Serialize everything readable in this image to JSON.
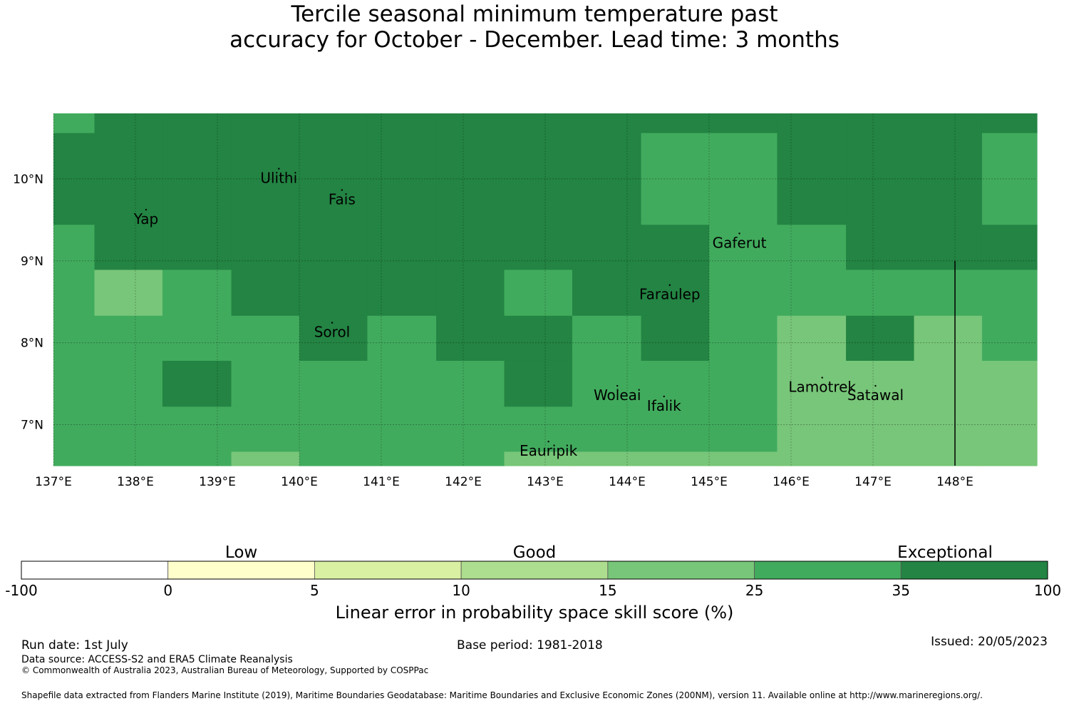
{
  "title": {
    "line1": "Tercile seasonal minimum temperature past",
    "line2": "accuracy for October - December. Lead time: 3 months"
  },
  "map": {
    "lon_range": [
      137.0,
      149.0
    ],
    "lat_range": [
      6.5,
      10.8
    ],
    "x_ticks": [
      {
        "value": 137,
        "label": "137°E"
      },
      {
        "value": 138,
        "label": "138°E"
      },
      {
        "value": 139,
        "label": "139°E"
      },
      {
        "value": 140,
        "label": "140°E"
      },
      {
        "value": 141,
        "label": "141°E"
      },
      {
        "value": 142,
        "label": "142°E"
      },
      {
        "value": 143,
        "label": "143°E"
      },
      {
        "value": 144,
        "label": "144°E"
      },
      {
        "value": 145,
        "label": "145°E"
      },
      {
        "value": 146,
        "label": "146°E"
      },
      {
        "value": 147,
        "label": "147°E"
      },
      {
        "value": 148,
        "label": "148°E"
      }
    ],
    "y_ticks": [
      {
        "value": 7,
        "label": "7°N"
      },
      {
        "value": 8,
        "label": "8°N"
      },
      {
        "value": 9,
        "label": "9°N"
      },
      {
        "value": 10,
        "label": "10°N"
      }
    ],
    "grid": true,
    "legend_classes": {
      "3": "#78c679",
      "4": "#41ab5d",
      "5": "#238443"
    },
    "lon_edges": [
      137.0,
      137.5,
      138.33,
      139.17,
      140.0,
      140.83,
      141.67,
      142.5,
      143.33,
      144.17,
      145.0,
      145.83,
      146.67,
      147.5,
      148.33,
      149.0
    ],
    "lat_edges": [
      10.8,
      10.56,
      9.44,
      8.89,
      8.33,
      7.78,
      7.22,
      6.67,
      6.5
    ],
    "skill_class_grid": [
      [
        4,
        5,
        5,
        5,
        5,
        5,
        5,
        5,
        5,
        5,
        5,
        5,
        5,
        5,
        5
      ],
      [
        5,
        5,
        5,
        5,
        5,
        5,
        5,
        5,
        5,
        4,
        4,
        5,
        5,
        5,
        4
      ],
      [
        4,
        5,
        5,
        5,
        5,
        5,
        5,
        5,
        5,
        5,
        4,
        4,
        5,
        5,
        5
      ],
      [
        4,
        3,
        4,
        5,
        5,
        5,
        5,
        4,
        5,
        5,
        4,
        4,
        4,
        4,
        4
      ],
      [
        4,
        4,
        4,
        4,
        5,
        4,
        5,
        5,
        4,
        5,
        4,
        3,
        5,
        3,
        4
      ],
      [
        4,
        4,
        5,
        4,
        4,
        4,
        4,
        5,
        4,
        4,
        4,
        3,
        3,
        3,
        3
      ],
      [
        4,
        4,
        4,
        4,
        4,
        4,
        4,
        4,
        4,
        4,
        4,
        3,
        3,
        3,
        3
      ],
      [
        4,
        4,
        4,
        3,
        4,
        4,
        4,
        3,
        3,
        3,
        3,
        3,
        3,
        3,
        3
      ]
    ],
    "places": [
      {
        "name": "Ulithi",
        "lon": 139.75,
        "lat": 10.02
      },
      {
        "name": "Fais",
        "lon": 140.52,
        "lat": 9.76
      },
      {
        "name": "Yap",
        "lon": 138.13,
        "lat": 9.52
      },
      {
        "name": "Gaferut",
        "lon": 145.37,
        "lat": 9.23
      },
      {
        "name": "Faraulep",
        "lon": 144.52,
        "lat": 8.6
      },
      {
        "name": "Sorol",
        "lon": 140.4,
        "lat": 8.14
      },
      {
        "name": "Woleai",
        "lon": 143.88,
        "lat": 7.37
      },
      {
        "name": "Ifalik",
        "lon": 144.45,
        "lat": 7.24
      },
      {
        "name": "Lamotrek",
        "lon": 146.38,
        "lat": 7.47
      },
      {
        "name": "Satawal",
        "lon": 147.03,
        "lat": 7.37
      },
      {
        "name": "Eauripik",
        "lon": 143.04,
        "lat": 6.69
      }
    ],
    "boundary_line": {
      "lon": 148.0,
      "lat_from": 6.5,
      "lat_to": 9.0
    }
  },
  "colorbar": {
    "category_labels": [
      {
        "label": "Low",
        "at_bin": 1.5
      },
      {
        "label": "Good",
        "at_bin": 3.5
      },
      {
        "label": "Exceptional",
        "at_bin": 6.3
      }
    ],
    "bins": [
      {
        "from": "-100",
        "to": "0",
        "color": "#ffffff"
      },
      {
        "from": "0",
        "to": "5",
        "color": "#ffffcc"
      },
      {
        "from": "5",
        "to": "10",
        "color": "#d9f0a3"
      },
      {
        "from": "10",
        "to": "15",
        "color": "#addd8e"
      },
      {
        "from": "15",
        "to": "25",
        "color": "#78c679"
      },
      {
        "from": "25",
        "to": "35",
        "color": "#41ab5d"
      },
      {
        "from": "35",
        "to": "100",
        "color": "#238443"
      }
    ],
    "tick_labels": [
      "-100",
      "0",
      "5",
      "10",
      "15",
      "25",
      "35",
      "100"
    ],
    "axis_label": "Linear error in probability space skill score (%)"
  },
  "footer": {
    "run_date": "Run date: 1st July",
    "data_source": "Data source: ACCESS-S2 and ERA5 Climate Reanalysis",
    "copyright": "© Commonwealth of Australia 2023, Australian Bureau of Meteorology, Supported by COSPPac",
    "base_period": "Base period: 1981-2018",
    "issued": "Issued: 20/05/2023",
    "shapefile": "Shapefile data extracted from Flanders Marine Institute (2019), Maritime Boundaries Geodatabase: Maritime Boundaries and Exclusive Economic Zones (200NM), version 11. Available online at http://www.marineregions.org/."
  }
}
